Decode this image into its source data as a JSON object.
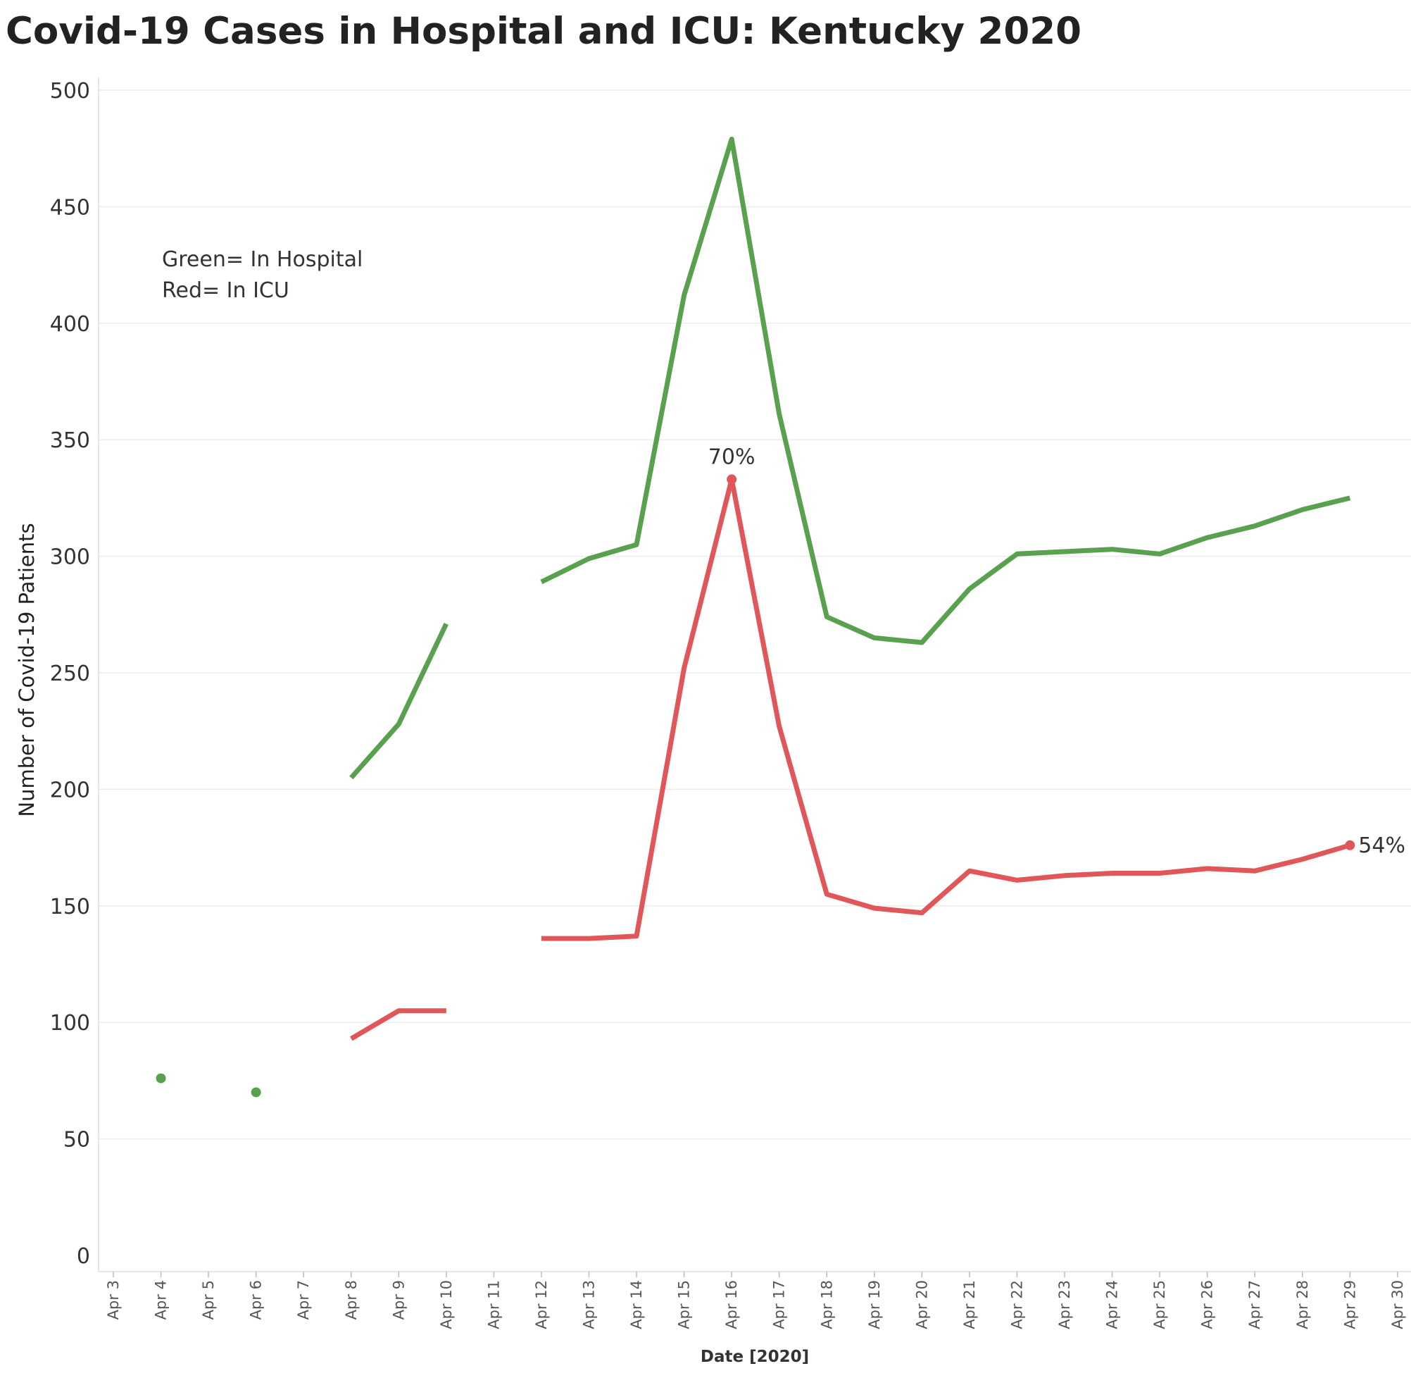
{
  "chart_data": {
    "type": "line",
    "title": "Covid-19 Cases in Hospital and ICU: Kentucky 2020",
    "xlabel": "Date [2020]",
    "ylabel": "Number of Covid-19 Patients",
    "ylim": [
      0,
      500
    ],
    "yticks": [
      0,
      50,
      100,
      150,
      200,
      250,
      300,
      350,
      400,
      450,
      500
    ],
    "x_ticks": [
      "Apr 3",
      "Apr 4",
      "Apr 5",
      "Apr 6",
      "Apr 7",
      "Apr 8",
      "Apr 9",
      "Apr 10",
      "Apr 11",
      "Apr 12",
      "Apr 13",
      "Apr 14",
      "Apr 15",
      "Apr 16",
      "Apr 17",
      "Apr 18",
      "Apr 19",
      "Apr 20",
      "Apr 21",
      "Apr 22",
      "Apr 23",
      "Apr 24",
      "Apr 25",
      "Apr 26",
      "Apr 27",
      "Apr 28",
      "Apr 29",
      "Apr 30"
    ],
    "grid": true,
    "annotations": [
      "Green= In Hospital",
      "Red= In ICU"
    ],
    "colors": {
      "hospital": "#59a14f",
      "icu": "#e15759",
      "grid": "#ececec",
      "axis": "#dddddd"
    },
    "series": [
      {
        "key": "hospital",
        "color": "#59a14f",
        "values": [
          null,
          76,
          null,
          70,
          null,
          205,
          228,
          271,
          null,
          289,
          299,
          305,
          412,
          479,
          361,
          274,
          265,
          263,
          286,
          301,
          302,
          303,
          301,
          308,
          313,
          320,
          325,
          null
        ]
      },
      {
        "key": "icu",
        "color": "#e15759",
        "values": [
          null,
          null,
          null,
          null,
          null,
          93,
          105,
          105,
          null,
          136,
          136,
          137,
          252,
          333,
          227,
          155,
          149,
          147,
          165,
          161,
          163,
          164,
          164,
          166,
          165,
          170,
          176,
          null
        ]
      }
    ],
    "point_labels": [
      {
        "series": "icu",
        "x": "Apr 16",
        "text": "70%",
        "position": "above"
      },
      {
        "series": "icu",
        "x": "Apr 29",
        "text": "54%",
        "position": "right"
      }
    ]
  }
}
